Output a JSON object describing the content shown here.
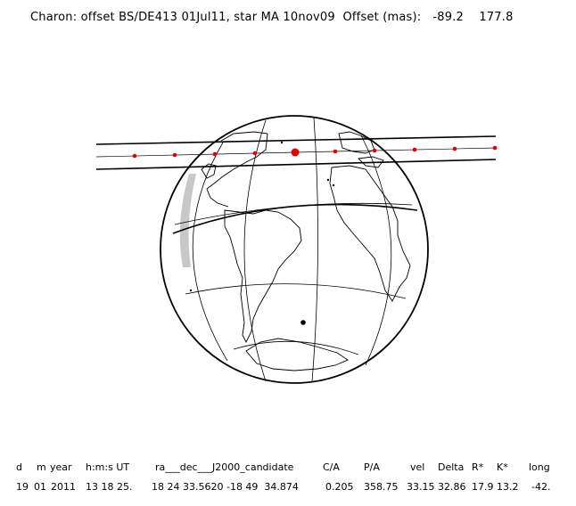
{
  "title": "Charon: offset BS/DE413 01Jul11, star MA 10nov09  Offset (mas):   -89.2    177.8",
  "colors": {
    "chord": "#e00000",
    "line": "#000000",
    "night_shade": "#c8c8c8"
  },
  "table": {
    "headers": [
      "d",
      "m",
      "year",
      "h:m:s UT",
      "ra___dec___J2000_candidate",
      "C/A",
      "P/A",
      "vel",
      "Delta",
      "R*",
      "K*",
      "long"
    ],
    "values": [
      "19",
      "01",
      "2011",
      "13 18 25.",
      "18 24 33.5620 -18 49  34.874",
      "0.205",
      "358.75",
      "33.15",
      "32.86",
      "17.9",
      "13.2",
      "-42."
    ]
  }
}
